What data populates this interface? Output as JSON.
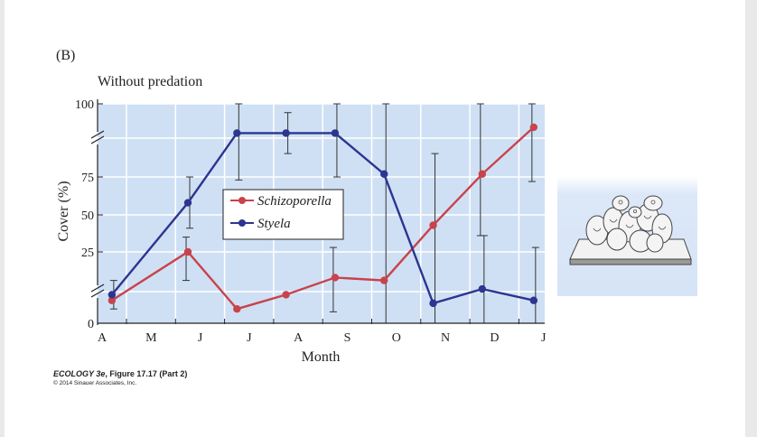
{
  "panel_label": "(B)",
  "caption": {
    "book": "ECOLOGY 3e",
    "figure": ", Figure 17.17 (Part 2)",
    "copyright": "© 2014 Sinauer Associates, Inc."
  },
  "colors": {
    "plot_bg": "#cfe0f5",
    "schizoporella": "#c8434a",
    "styela": "#2c3590",
    "inset_bg": "#dce8f8"
  },
  "illustration": {
    "name": "sea-squirt-colony-illustration"
  },
  "chart_data": {
    "type": "line",
    "title": "Without predation",
    "xlabel": "Month",
    "ylabel": "Cover (%)",
    "x_months": [
      "A",
      "M",
      "J",
      "J",
      "A",
      "S",
      "O",
      "N",
      "D",
      "J"
    ],
    "y_ticks": [
      {
        "label": "0",
        "value": 0
      },
      {
        "label": "25",
        "value": 25
      },
      {
        "label": "50",
        "value": 50
      },
      {
        "label": "75",
        "value": 75
      },
      {
        "label": "100",
        "value": 100
      }
    ],
    "ylim": [
      0,
      100
    ],
    "y_axis_breaks": true,
    "grid": true,
    "legend_position": "center",
    "series": [
      {
        "name": "Schizoporella",
        "x": [
          4.2,
          5.75,
          6.75,
          7.75,
          8.75,
          9.75,
          10.75,
          11.75,
          12.8
        ],
        "y": [
          8,
          25,
          5,
          10,
          16,
          15,
          43,
          76,
          92
        ],
        "err": [
          null,
          10,
          null,
          null,
          12,
          null,
          null,
          40,
          20
        ]
      },
      {
        "name": "Styela",
        "x": [
          4.2,
          5.75,
          6.75,
          7.75,
          8.75,
          9.75,
          10.75,
          11.75,
          12.8
        ],
        "y": [
          10,
          58,
          90,
          90,
          90,
          76,
          7,
          12,
          8
        ],
        "err": [
          5,
          17,
          17,
          7,
          15,
          82,
          76,
          24,
          20
        ]
      }
    ]
  }
}
